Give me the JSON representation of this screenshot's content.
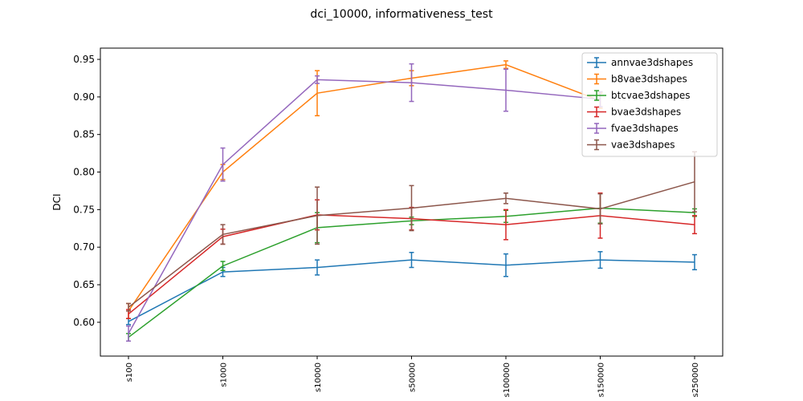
{
  "chart_data": {
    "type": "line",
    "title": "dci_10000, informativeness_test",
    "xlabel": "",
    "ylabel": "DCI",
    "categories": [
      "s100",
      "s1000",
      "s10000",
      "s50000",
      "s100000",
      "s150000",
      "s250000"
    ],
    "ylim": [
      0.555,
      0.965
    ],
    "yticks": [
      0.6,
      0.65,
      0.7,
      0.75,
      0.8,
      0.85,
      0.9,
      0.95
    ],
    "error_bars": true,
    "legend_position": "top-right",
    "series": [
      {
        "name": "annvae3dshapes",
        "color": "#1f77b4",
        "values": [
          0.601,
          0.667,
          0.673,
          0.683,
          0.676,
          0.683,
          0.68
        ],
        "errors": [
          0.004,
          0.006,
          0.01,
          0.01,
          0.015,
          0.011,
          0.01
        ]
      },
      {
        "name": "b8vae3dshapes",
        "color": "#ff7f0e",
        "values": [
          0.615,
          0.8,
          0.905,
          0.925,
          0.943,
          0.895,
          null
        ],
        "errors": [
          0.01,
          0.01,
          0.03,
          0.01,
          0.005,
          0.01,
          null
        ]
      },
      {
        "name": "btcvae3dshapes",
        "color": "#2ca02c",
        "values": [
          0.58,
          0.675,
          0.726,
          0.735,
          0.741,
          0.752,
          0.746
        ],
        "errors": [
          0.005,
          0.006,
          0.02,
          0.005,
          0.008,
          0.02,
          0.005
        ]
      },
      {
        "name": "bvae3dshapes",
        "color": "#d62728",
        "values": [
          0.611,
          0.714,
          0.743,
          0.738,
          0.73,
          0.742,
          0.73
        ],
        "errors": [
          0.006,
          0.01,
          0.02,
          0.015,
          0.02,
          0.03,
          0.012
        ]
      },
      {
        "name": "fvae3dshapes",
        "color": "#9467bd",
        "values": [
          0.585,
          0.81,
          0.923,
          0.919,
          0.909,
          0.897,
          null
        ],
        "errors": [
          0.01,
          0.022,
          0.005,
          0.025,
          0.028,
          0.01,
          null
        ]
      },
      {
        "name": "vae3dshapes",
        "color": "#8c564b",
        "values": [
          0.62,
          0.717,
          0.742,
          0.752,
          0.765,
          0.751,
          0.787
        ],
        "errors": [
          0.005,
          0.013,
          0.038,
          0.03,
          0.007,
          0.02,
          0.04
        ]
      }
    ]
  }
}
